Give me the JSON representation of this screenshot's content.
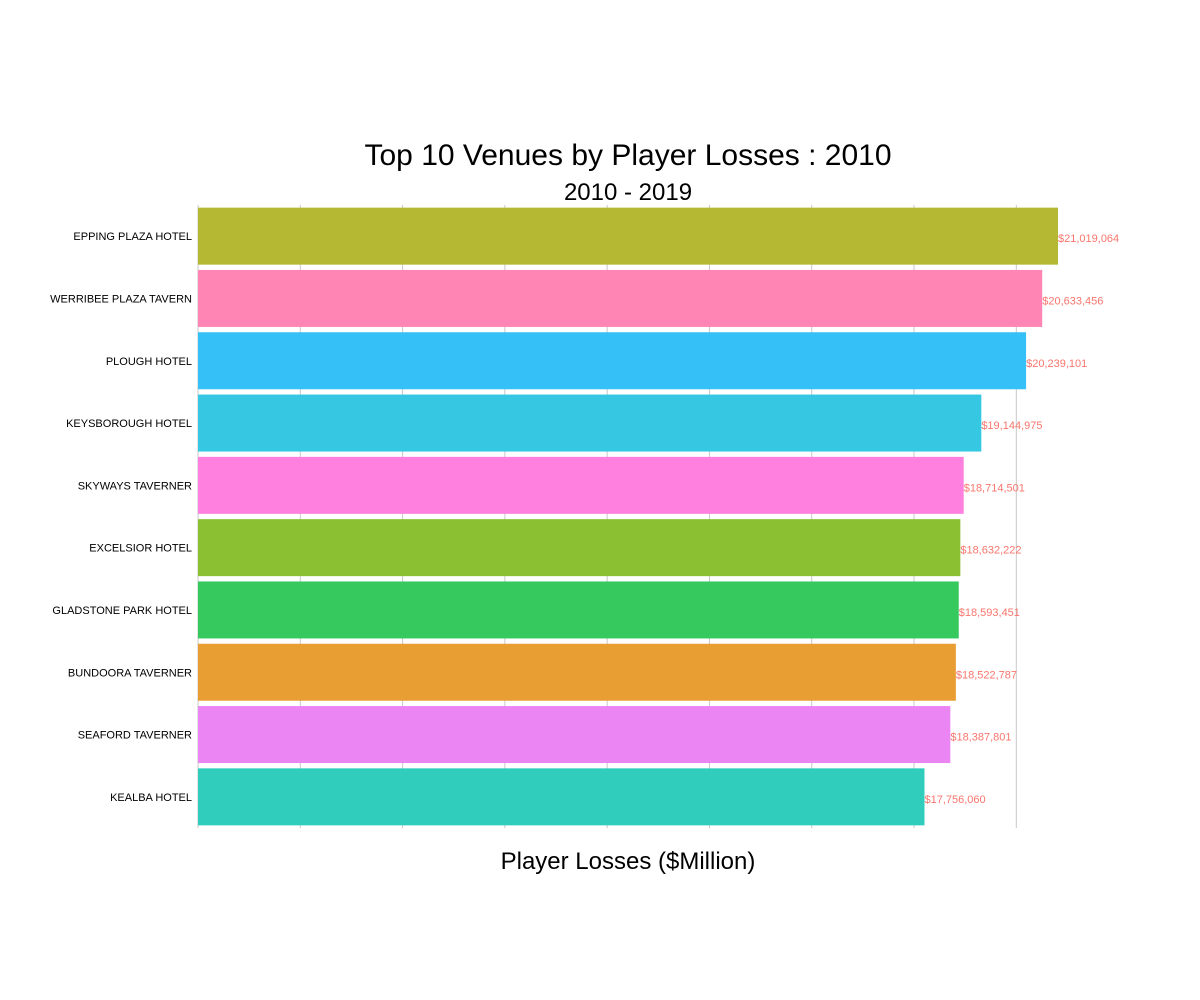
{
  "chart_data": {
    "type": "bar",
    "orientation": "horizontal",
    "title": "Top 10 Venues by Player Losses : 2010",
    "subtitle": "2010 - 2019",
    "xlabel": "Player Losses ($Million)",
    "ylabel": "",
    "xlim": [
      0,
      21019064
    ],
    "grid": true,
    "legend": "none",
    "categories": [
      "EPPING PLAZA HOTEL",
      "WERRIBEE PLAZA TAVERN",
      "PLOUGH HOTEL",
      "KEYSBOROUGH HOTEL",
      "SKYWAYS TAVERNER",
      "EXCELSIOR HOTEL",
      "GLADSTONE PARK HOTEL",
      "BUNDOORA TAVERNER",
      "SEAFORD TAVERNER",
      "KEALBA HOTEL"
    ],
    "values": [
      21019064,
      20633456,
      20239101,
      19144975,
      18714501,
      18632222,
      18593451,
      18522787,
      18387801,
      17756060
    ],
    "value_labels": [
      "$21,019,064",
      "$20,633,456",
      "$20,239,101",
      "$19,144,975",
      "$18,714,501",
      "$18,632,222",
      "$18,593,451",
      "$18,522,787",
      "$18,387,801",
      "$17,756,060"
    ],
    "colors": [
      "#b5b832",
      "#ff85b5",
      "#35c0f8",
      "#36c8e2",
      "#ff80df",
      "#8ac032",
      "#35c95e",
      "#e89e32",
      "#eb85f4",
      "#30cdbd"
    ],
    "value_label_color": "#f8766d",
    "grid_color": "#c8c8c8"
  }
}
